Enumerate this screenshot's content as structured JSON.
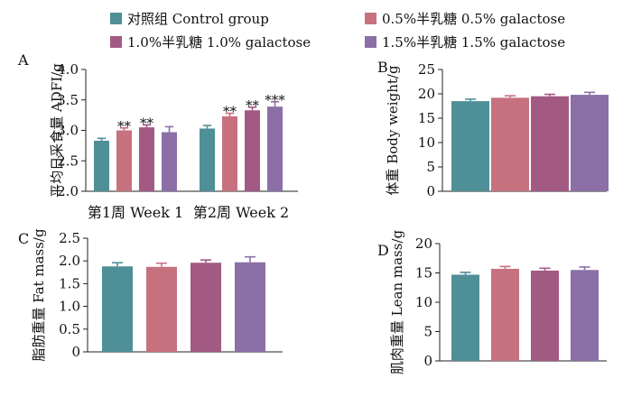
{
  "legend": [
    {
      "label": "对照组  Control group",
      "color": "#4f8f97"
    },
    {
      "label": "0.5%半乳糖  0.5% galactose",
      "color": "#c7717f"
    },
    {
      "label": "1.0%半乳糖  1.0% galactose",
      "color": "#a25a83"
    },
    {
      "label": "1.5%半乳糖  1.5% galactose",
      "color": "#8b6fa6"
    }
  ],
  "chart_data": [
    {
      "panel": "A",
      "type": "bar",
      "ylabel": "平均日采食量 ADFI/g",
      "ylim": [
        2.0,
        4.0
      ],
      "yticks": [
        "2.0",
        "2.5",
        "3.0",
        "3.5",
        "4.0"
      ],
      "categories": [
        "第1周  Week 1",
        "第2周  Week 2"
      ],
      "series": [
        {
          "name": "对照组  Control group",
          "values": [
            2.83,
            3.03
          ],
          "errors": [
            0.04,
            0.05
          ],
          "sig": [
            "",
            ""
          ]
        },
        {
          "name": "0.5%半乳糖  0.5% galactose",
          "values": [
            3.0,
            3.23
          ],
          "errors": [
            0.04,
            0.05
          ],
          "sig": [
            "**",
            "**"
          ]
        },
        {
          "name": "1.0%半乳糖  1.0% galactose",
          "values": [
            3.05,
            3.33
          ],
          "errors": [
            0.04,
            0.05
          ],
          "sig": [
            "**",
            "**"
          ]
        },
        {
          "name": "1.5%半乳糖  1.5% galactose",
          "values": [
            2.97,
            3.39
          ],
          "errors": [
            0.09,
            0.08
          ],
          "sig": [
            "",
            "***"
          ]
        }
      ]
    },
    {
      "panel": "B",
      "type": "bar",
      "ylabel": "体重  Body weight/g",
      "ylim": [
        0,
        25
      ],
      "yticks": [
        "0",
        "5",
        "10",
        "15",
        "20",
        "25"
      ],
      "categories": [
        ""
      ],
      "series": [
        {
          "name": "对照组  Control group",
          "values": [
            18.5
          ],
          "errors": [
            0.4
          ],
          "sig": [
            ""
          ]
        },
        {
          "name": "0.5%半乳糖  0.5% galactose",
          "values": [
            19.2
          ],
          "errors": [
            0.4
          ],
          "sig": [
            ""
          ]
        },
        {
          "name": "1.0%半乳糖  1.0% galactose",
          "values": [
            19.5
          ],
          "errors": [
            0.4
          ],
          "sig": [
            ""
          ]
        },
        {
          "name": "1.5%半乳糖  1.5% galactose",
          "values": [
            19.8
          ],
          "errors": [
            0.5
          ],
          "sig": [
            ""
          ]
        }
      ]
    },
    {
      "panel": "C",
      "type": "bar",
      "ylabel": "脂肪重量  Fat mass/g",
      "ylim": [
        0,
        2.5
      ],
      "yticks": [
        "0",
        "0.5",
        "1.0",
        "1.5",
        "2.0",
        "2.5"
      ],
      "categories": [
        ""
      ],
      "series": [
        {
          "name": "对照组  Control group",
          "values": [
            1.88
          ],
          "errors": [
            0.08
          ],
          "sig": [
            ""
          ]
        },
        {
          "name": "0.5%半乳糖  0.5% galactose",
          "values": [
            1.87
          ],
          "errors": [
            0.08
          ],
          "sig": [
            ""
          ]
        },
        {
          "name": "1.0%半乳糖  1.0% galactose",
          "values": [
            1.96
          ],
          "errors": [
            0.06
          ],
          "sig": [
            ""
          ]
        },
        {
          "name": "1.5%半乳糖  1.5% galactose",
          "values": [
            1.97
          ],
          "errors": [
            0.12
          ],
          "sig": [
            ""
          ]
        }
      ]
    },
    {
      "panel": "D",
      "type": "bar",
      "ylabel": "肌肉重量  Lean mass/g",
      "ylim": [
        0,
        20
      ],
      "yticks": [
        "0",
        "5",
        "10",
        "15",
        "20"
      ],
      "categories": [
        ""
      ],
      "series": [
        {
          "name": "对照组  Control group",
          "values": [
            14.7
          ],
          "errors": [
            0.4
          ],
          "sig": [
            ""
          ]
        },
        {
          "name": "0.5%半乳糖  0.5% galactose",
          "values": [
            15.7
          ],
          "errors": [
            0.4
          ],
          "sig": [
            ""
          ]
        },
        {
          "name": "1.0%半乳糖  1.0% galactose",
          "values": [
            15.4
          ],
          "errors": [
            0.4
          ],
          "sig": [
            ""
          ]
        },
        {
          "name": "1.5%半乳糖  1.5% galactose",
          "values": [
            15.5
          ],
          "errors": [
            0.5
          ],
          "sig": [
            ""
          ]
        }
      ]
    }
  ]
}
